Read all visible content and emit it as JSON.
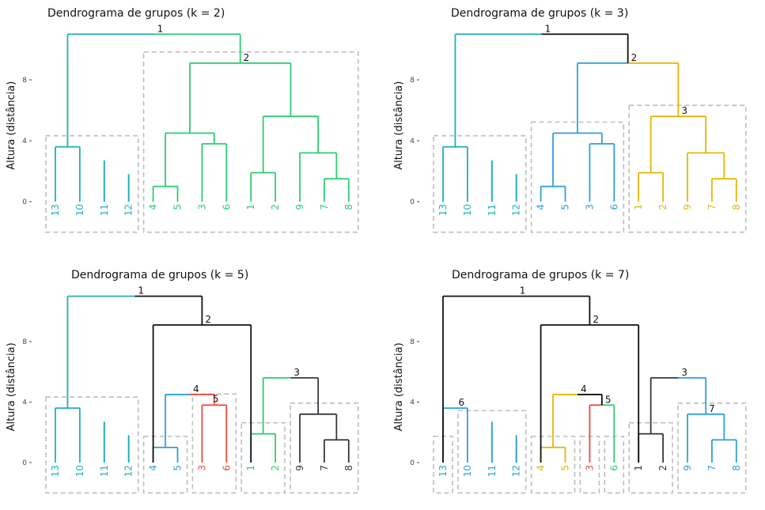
{
  "chart_data": [
    {
      "type": "dendrogram",
      "title": "Dendrograma de grupos (k = 2)",
      "ylabel": "Altura (distância)",
      "yticks": [
        0,
        4,
        8
      ],
      "ylim": [
        -1.8,
        11.8
      ],
      "colors": [
        "#1FAFBF",
        "#2ECC71"
      ],
      "leaves": [
        {
          "label": "13",
          "group": 0
        },
        {
          "label": "10",
          "group": 0
        },
        {
          "label": "11",
          "group": 0
        },
        {
          "label": "12",
          "group": 0
        },
        {
          "label": "4",
          "group": 1
        },
        {
          "label": "5",
          "group": 1
        },
        {
          "label": "3",
          "group": 1
        },
        {
          "label": "6",
          "group": 1
        },
        {
          "label": "1",
          "group": 1
        },
        {
          "label": "2",
          "group": 1
        },
        {
          "label": "9",
          "group": 1
        },
        {
          "label": "7",
          "group": 1
        },
        {
          "label": "8",
          "group": 1
        }
      ],
      "merges": [
        {
          "l": [
            0,
            3
          ],
          "h": 1.8,
          "r": [
            0,
            3
          ],
          "c": 0
        },
        {
          "l": [
            0,
            2
          ],
          "h": 2.7,
          "r": [
            0,
            2
          ],
          "c": 0
        },
        {
          "l": [
            0,
            1
          ],
          "h": 3.6,
          "r": [
            0,
            0
          ],
          "c": 0
        },
        {
          "l": [
            1,
            4
          ],
          "h": 1.0,
          "r": [
            1,
            5
          ],
          "c": 1
        },
        {
          "l": [
            1,
            6
          ],
          "h": 3.8,
          "r": [
            1,
            7
          ],
          "c": 1
        },
        {
          "l": [
            1,
            8
          ],
          "h": 1.9,
          "r": [
            1,
            9
          ],
          "c": 1
        },
        {
          "l": [
            1,
            11
          ],
          "h": 1.5,
          "r": [
            1,
            12
          ],
          "c": 1
        },
        {
          "l": [
            1,
            10
          ],
          "h": 3.2,
          "r": [
            1,
            11
          ],
          "c": 1
        },
        {
          "l": [
            1,
            4
          ],
          "h": 4.5,
          "r": [
            1,
            6
          ],
          "c": 1
        },
        {
          "l": [
            1,
            8
          ],
          "h": 5.6,
          "r": [
            1,
            10
          ],
          "c": 1
        },
        {
          "l": [
            1,
            4
          ],
          "h": 9.1,
          "r": [
            1,
            8
          ],
          "c": 1,
          "label": "2"
        },
        {
          "l": [
            0,
            0
          ],
          "h": 11.0,
          "r": [
            1,
            4
          ],
          "c": [
            0,
            1
          ],
          "label": "1"
        }
      ],
      "boxes": [
        [
          0,
          3
        ],
        [
          4,
          12
        ]
      ]
    },
    {
      "type": "dendrogram",
      "title": "Dendrograma de grupos (k = 3)",
      "ylabel": "Altura (distância)",
      "yticks": [
        0,
        4,
        8
      ],
      "ylim": [
        -1.8,
        11.8
      ],
      "colors": [
        "#1FAFBF",
        "#2E9FE0",
        "#E5B700",
        "#111111"
      ],
      "leaves": [
        {
          "label": "13",
          "group": 0
        },
        {
          "label": "10",
          "group": 0
        },
        {
          "label": "11",
          "group": 0
        },
        {
          "label": "12",
          "group": 0
        },
        {
          "label": "4",
          "group": 1
        },
        {
          "label": "5",
          "group": 1
        },
        {
          "label": "3",
          "group": 1
        },
        {
          "label": "6",
          "group": 1
        },
        {
          "label": "1",
          "group": 2
        },
        {
          "label": "2",
          "group": 2
        },
        {
          "label": "9",
          "group": 2
        },
        {
          "label": "7",
          "group": 2
        },
        {
          "label": "8",
          "group": 2
        }
      ],
      "merges": [
        {
          "l": [
            0,
            3
          ],
          "h": 1.8,
          "r": [
            0,
            3
          ],
          "c": 0
        },
        {
          "l": [
            0,
            2
          ],
          "h": 2.7,
          "r": [
            0,
            2
          ],
          "c": 0
        },
        {
          "l": [
            0,
            1
          ],
          "h": 3.6,
          "r": [
            0,
            0
          ],
          "c": 0
        },
        {
          "l": [
            1,
            4
          ],
          "h": 1.0,
          "r": [
            1,
            5
          ],
          "c": 1
        },
        {
          "l": [
            1,
            6
          ],
          "h": 3.8,
          "r": [
            1,
            7
          ],
          "c": 1
        },
        {
          "l": [
            1,
            4
          ],
          "h": 4.5,
          "r": [
            1,
            6
          ],
          "c": 1
        },
        {
          "l": [
            2,
            8
          ],
          "h": 1.9,
          "r": [
            2,
            9
          ],
          "c": 2
        },
        {
          "l": [
            2,
            11
          ],
          "h": 1.5,
          "r": [
            2,
            12
          ],
          "c": 2
        },
        {
          "l": [
            2,
            10
          ],
          "h": 3.2,
          "r": [
            2,
            11
          ],
          "c": 2
        },
        {
          "l": [
            2,
            8
          ],
          "h": 5.6,
          "r": [
            2,
            10
          ],
          "c": 2,
          "label": "3"
        },
        {
          "l": [
            1,
            4
          ],
          "h": 9.1,
          "r": [
            2,
            8
          ],
          "c": [
            1,
            2
          ],
          "label": "2"
        },
        {
          "l": [
            0,
            0
          ],
          "h": 11.0,
          "r": [
            1,
            4
          ],
          "c": [
            0,
            3
          ],
          "label": "1",
          "vr": 3
        }
      ],
      "boxes": [
        [
          0,
          3
        ],
        [
          4,
          7
        ],
        [
          8,
          12
        ]
      ]
    },
    {
      "type": "dendrogram",
      "title": "Dendrograma de grupos (k = 5)",
      "ylabel": "Altura (distância)",
      "yticks": [
        0,
        4,
        8
      ],
      "ylim": [
        -1.8,
        11.8
      ],
      "colors": [
        "#1FAFBF",
        "#2E9FE0",
        "#E74C3C",
        "#2ECC71",
        "#333940",
        "#111111"
      ],
      "leaves": [
        {
          "label": "13",
          "group": 0
        },
        {
          "label": "10",
          "group": 0
        },
        {
          "label": "11",
          "group": 0
        },
        {
          "label": "12",
          "group": 0
        },
        {
          "label": "4",
          "group": 1
        },
        {
          "label": "5",
          "group": 1
        },
        {
          "label": "3",
          "group": 2
        },
        {
          "label": "6",
          "group": 2
        },
        {
          "label": "1",
          "group": 3
        },
        {
          "label": "2",
          "group": 3
        },
        {
          "label": "9",
          "group": 4
        },
        {
          "label": "7",
          "group": 4
        },
        {
          "label": "8",
          "group": 4
        }
      ],
      "merges": [
        {
          "l": [
            0,
            3
          ],
          "h": 1.8,
          "r": [
            0,
            3
          ],
          "c": 0
        },
        {
          "l": [
            0,
            2
          ],
          "h": 2.7,
          "r": [
            0,
            2
          ],
          "c": 0
        },
        {
          "l": [
            0,
            1
          ],
          "h": 3.6,
          "r": [
            0,
            0
          ],
          "c": 0
        },
        {
          "l": [
            1,
            4
          ],
          "h": 1.0,
          "r": [
            1,
            5
          ],
          "c": 1
        },
        {
          "l": [
            2,
            6
          ],
          "h": 3.8,
          "r": [
            2,
            7
          ],
          "c": 2
        },
        {
          "l": [
            1,
            4
          ],
          "h": 4.5,
          "r": [
            2,
            6
          ],
          "c": [
            1,
            2
          ],
          "label": "4",
          "label2": "5"
        },
        {
          "l": [
            3,
            8
          ],
          "h": 1.9,
          "r": [
            3,
            9
          ],
          "c": 3
        },
        {
          "l": [
            4,
            11
          ],
          "h": 1.5,
          "r": [
            4,
            12
          ],
          "c": 4
        },
        {
          "l": [
            4,
            10
          ],
          "h": 3.2,
          "r": [
            4,
            11
          ],
          "c": 4
        },
        {
          "l": [
            3,
            8
          ],
          "h": 5.6,
          "r": [
            4,
            10
          ],
          "c": [
            3,
            4
          ],
          "label": "3"
        },
        {
          "l": [
            5,
            4
          ],
          "h": 9.1,
          "r": [
            5,
            8
          ],
          "c": [
            5,
            5
          ],
          "label": "2"
        },
        {
          "l": [
            0,
            0
          ],
          "h": 11.0,
          "r": [
            5,
            4
          ],
          "c": [
            0,
            5
          ],
          "label": "1"
        }
      ],
      "boxes": [
        [
          0,
          3
        ],
        [
          4,
          5
        ],
        [
          6,
          7
        ],
        [
          8,
          9
        ],
        [
          10,
          12
        ]
      ]
    },
    {
      "type": "dendrogram",
      "title": "Dendrograma de grupos (k = 7)",
      "ylabel": "Altura (distância)",
      "yticks": [
        0,
        4,
        8
      ],
      "ylim": [
        -1.8,
        11.8
      ],
      "colors": [
        "#1FAFBF",
        "#2E9FE0",
        "#E5B700",
        "#E74C3C",
        "#2ECC71",
        "#333940",
        "#111111"
      ],
      "leaves": [
        {
          "label": "13",
          "group": 0
        },
        {
          "label": "10",
          "group": 1
        },
        {
          "label": "11",
          "group": 1
        },
        {
          "label": "12",
          "group": 1
        },
        {
          "label": "4",
          "group": 2
        },
        {
          "label": "5",
          "group": 2
        },
        {
          "label": "3",
          "group": 3
        },
        {
          "label": "6",
          "group": 4
        },
        {
          "label": "1",
          "group": 5
        },
        {
          "label": "2",
          "group": 5
        },
        {
          "label": "9",
          "group": 1
        },
        {
          "label": "7",
          "group": 1
        },
        {
          "label": "8",
          "group": 1
        }
      ],
      "merges": [
        {
          "l": [
            1,
            3
          ],
          "h": 1.8,
          "r": [
            1,
            3
          ],
          "c": 1
        },
        {
          "l": [
            1,
            2
          ],
          "h": 2.7,
          "r": [
            1,
            2
          ],
          "c": 1
        },
        {
          "l": [
            0,
            0
          ],
          "h": 3.6,
          "r": [
            1,
            1
          ],
          "c": [
            0,
            1
          ],
          "label": "6"
        },
        {
          "l": [
            2,
            4
          ],
          "h": 1.0,
          "r": [
            2,
            5
          ],
          "c": 2
        },
        {
          "l": [
            3,
            6
          ],
          "h": 3.8,
          "r": [
            4,
            7
          ],
          "c": [
            3,
            4
          ],
          "label": "5"
        },
        {
          "l": [
            2,
            4
          ],
          "h": 4.5,
          "r": [
            3,
            6
          ],
          "c": [
            2,
            6
          ],
          "label": "4"
        },
        {
          "l": [
            5,
            8
          ],
          "h": 1.9,
          "r": [
            5,
            9
          ],
          "c": 5
        },
        {
          "l": [
            1,
            11
          ],
          "h": 1.5,
          "r": [
            1,
            12
          ],
          "c": 1
        },
        {
          "l": [
            1,
            10
          ],
          "h": 3.2,
          "r": [
            1,
            11
          ],
          "c": 1,
          "label": "7"
        },
        {
          "l": [
            5,
            8
          ],
          "h": 5.6,
          "r": [
            1,
            10
          ],
          "c": [
            5,
            1
          ],
          "label": "3"
        },
        {
          "l": [
            6,
            4
          ],
          "h": 9.1,
          "r": [
            6,
            8
          ],
          "c": [
            6,
            6
          ],
          "label": "2"
        },
        {
          "l": [
            6,
            0
          ],
          "h": 11.0,
          "r": [
            6,
            4
          ],
          "c": [
            6,
            6
          ],
          "label": "1"
        }
      ],
      "boxes": [
        [
          0,
          0
        ],
        [
          1,
          3
        ],
        [
          4,
          5
        ],
        [
          6,
          6
        ],
        [
          7,
          7
        ],
        [
          8,
          9
        ],
        [
          10,
          12
        ]
      ]
    }
  ]
}
